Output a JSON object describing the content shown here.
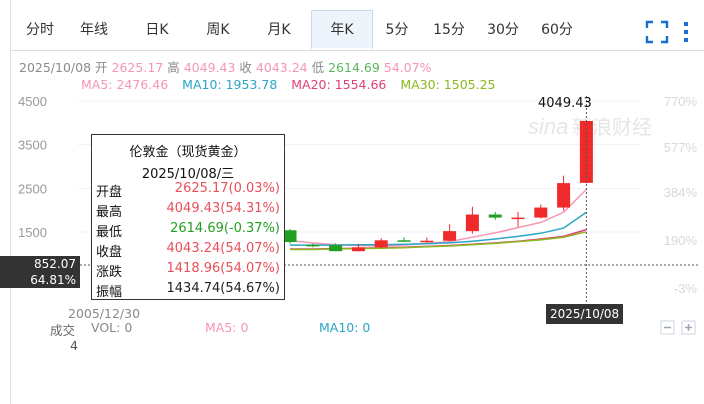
{
  "tabs": [
    {
      "label": "分时",
      "active": false
    },
    {
      "label": "年线",
      "active": false
    },
    {
      "label": "日K",
      "active": false
    },
    {
      "label": "周K",
      "active": false
    },
    {
      "label": "月K",
      "active": false
    },
    {
      "label": "年K",
      "active": true
    },
    {
      "label": "5分",
      "active": false
    },
    {
      "label": "15分",
      "active": false
    },
    {
      "label": "30分",
      "active": false
    },
    {
      "label": "60分",
      "active": false
    }
  ],
  "icons": {
    "fullscreen": "fullscreen-icon",
    "menu": "more-menu-icon",
    "watermark": "sina-finance-watermark"
  },
  "info": {
    "date": "2025/10/08",
    "open_label": "开",
    "open": "2625.17",
    "high_label": "高",
    "high": "4049.43",
    "close_label": "收",
    "close": "4043.24",
    "low_label": "低",
    "low": "2614.69",
    "pct": "54.07%"
  },
  "ma": {
    "ma5": "MA5: 2476.46",
    "ma10": "MA10: 1953.78",
    "ma20": "MA20: 1554.66",
    "ma30": "MA30: 1505.25"
  },
  "tooltip": {
    "title": "伦敦金（现货黄金）",
    "date": "2025/10/08/三",
    "rows": [
      {
        "label": "开盘",
        "value": "2625.17(0.03%)",
        "color": "#e8505b"
      },
      {
        "label": "最高",
        "value": "4049.43(54.31%)",
        "color": "#e8505b"
      },
      {
        "label": "最低",
        "value": "2614.69(-0.37%)",
        "color": "#22a022"
      },
      {
        "label": "收盘",
        "value": "4043.24(54.07%)",
        "color": "#e8505b"
      },
      {
        "label": "涨跌",
        "value": "1418.96(54.07%)",
        "color": "#e8505b"
      },
      {
        "label": "振幅",
        "value": "1434.74(54.67%)",
        "color": "#222222"
      }
    ]
  },
  "crosshair": {
    "price": "852.07",
    "pct": "64.81%",
    "date": "2025/10/08",
    "start_date": "2005/12/30",
    "peak": "4049.43"
  },
  "volume": {
    "label": "成交",
    "vol": "VOL: 0",
    "ma5": "MA5: 0",
    "ma10": "MA10: 0",
    "axis": "4"
  },
  "chart_data": {
    "type": "candlestick",
    "y_ticks": [
      "4500",
      "3500",
      "2500",
      "1500"
    ],
    "y_tick_values": [
      4500,
      3500,
      2500,
      1500
    ],
    "pct_ticks": [
      "770%",
      "577%",
      "384%",
      "190%",
      "-3%"
    ],
    "ylim": [
      400,
      4800
    ],
    "colors": {
      "up": "#ee2a2a",
      "down": "#22a022"
    },
    "candles": [
      {
        "o": 1540,
        "h": 1570,
        "l": 1230,
        "c": 1270
      },
      {
        "o": 1205,
        "h": 1235,
        "l": 1150,
        "c": 1200
      },
      {
        "o": 1200,
        "h": 1240,
        "l": 1060,
        "c": 1060
      },
      {
        "o": 1060,
        "h": 1230,
        "l": 1050,
        "c": 1150
      },
      {
        "o": 1150,
        "h": 1360,
        "l": 1120,
        "c": 1310
      },
      {
        "o": 1310,
        "h": 1380,
        "l": 1270,
        "c": 1280
      },
      {
        "o": 1280,
        "h": 1370,
        "l": 1260,
        "c": 1300
      },
      {
        "o": 1300,
        "h": 1680,
        "l": 1290,
        "c": 1520
      },
      {
        "o": 1520,
        "h": 2080,
        "l": 1460,
        "c": 1900
      },
      {
        "o": 1900,
        "h": 1960,
        "l": 1780,
        "c": 1830
      },
      {
        "o": 1830,
        "h": 1960,
        "l": 1620,
        "c": 1830
      },
      {
        "o": 1830,
        "h": 2130,
        "l": 1810,
        "c": 2060
      },
      {
        "o": 2060,
        "h": 2790,
        "l": 1990,
        "c": 2620
      },
      {
        "o": 2625.17,
        "h": 4049.43,
        "l": 2614.69,
        "c": 4043.24
      }
    ],
    "ma_series": [
      {
        "name": "MA5",
        "color": "#f497b2",
        "values": [
          1300,
          1250,
          1210,
          1190,
          1180,
          1200,
          1240,
          1280,
          1380,
          1480,
          1600,
          1720,
          1950,
          2476.46
        ]
      },
      {
        "name": "MA10",
        "color": "#2aa6c8",
        "values": [
          1200,
          1200,
          1200,
          1210,
          1210,
          1220,
          1230,
          1250,
          1290,
          1340,
          1400,
          1470,
          1590,
          1953.78
        ]
      },
      {
        "name": "MA20",
        "color": "#e0407a",
        "values": [
          1110,
          1110,
          1120,
          1130,
          1140,
          1150,
          1170,
          1190,
          1220,
          1250,
          1290,
          1340,
          1400,
          1554.66
        ]
      },
      {
        "name": "MA30",
        "color": "#8cb820",
        "values": [
          1100,
          1100,
          1110,
          1120,
          1130,
          1140,
          1160,
          1180,
          1210,
          1240,
          1280,
          1320,
          1380,
          1505.25
        ]
      }
    ]
  }
}
